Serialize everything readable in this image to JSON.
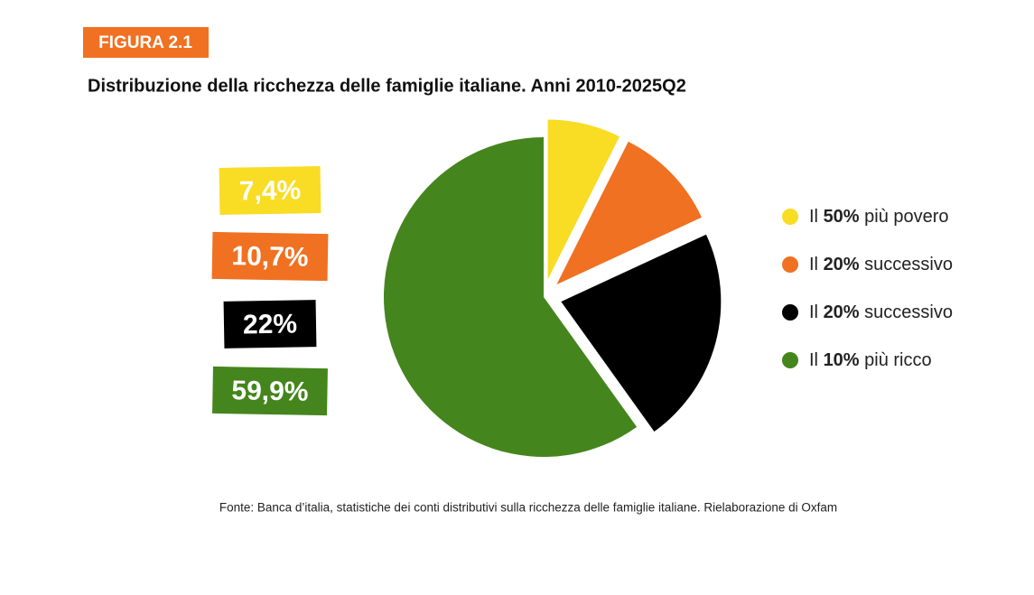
{
  "chart_data": {
    "type": "pie",
    "figure_label": "FIGURA 2.1",
    "title": "Distribuzione della ricchezza delle famiglie italiane. Anni 2010-2025Q2",
    "categories": [
      "Il 50% più povero",
      "Il 20% successivo",
      "Il 20% successivo",
      "Il 10% più ricco"
    ],
    "values": [
      7.4,
      10.7,
      22,
      59.9
    ],
    "value_labels": [
      "7,4%",
      "10,7%",
      "22%",
      "59,9%"
    ],
    "colors": [
      "#f9dc24",
      "#f07122",
      "#000000",
      "#45851d"
    ],
    "source": "Fonte: Banca d’italia, statistiche dei conti distributivi sulla ricchezza delle famiglie italiane. Rielaborazione di Oxfam"
  }
}
